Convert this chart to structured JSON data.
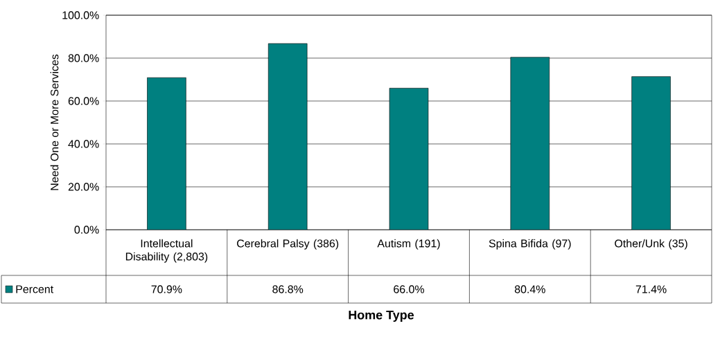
{
  "chart_data": {
    "type": "bar",
    "xlabel": "Home Type",
    "ylabel": "Need One or More Services",
    "categories": [
      "Intellectual Disability (2,803)",
      "Cerebral Palsy (386)",
      "Autism (191)",
      "Spina Bifida (97)",
      "Other/Unk (35)"
    ],
    "series": [
      {
        "name": "Percent",
        "color": "#008080",
        "values": [
          70.9,
          86.8,
          66.0,
          80.4,
          71.4
        ],
        "value_labels": [
          "70.9%",
          "86.8%",
          "66.0%",
          "80.4%",
          "71.4%"
        ]
      }
    ],
    "ylim": [
      0,
      100
    ],
    "yticks": [
      {
        "value": 0,
        "label": "0.0%"
      },
      {
        "value": 20,
        "label": "20.0%"
      },
      {
        "value": 40,
        "label": "40.0%"
      },
      {
        "value": 60,
        "label": "60.0%"
      },
      {
        "value": 80,
        "label": "80.0%"
      },
      {
        "value": 100,
        "label": "100.0%"
      }
    ],
    "grid": "y",
    "legend": "bottom"
  }
}
